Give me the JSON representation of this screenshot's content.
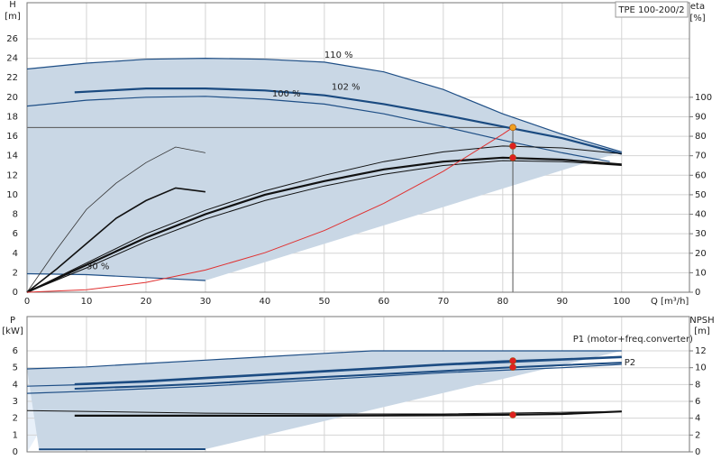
{
  "chart_data": [
    {
      "type": "line",
      "title": "TPE 100-200/2",
      "xlabel": "Q [m³/h]",
      "ylabel": "H",
      "yunit": "[m]",
      "y2label": "eta",
      "y2unit": "[%]",
      "xlim": [
        0,
        111.4
      ],
      "xticks": [
        0,
        10,
        20,
        30,
        40,
        50,
        60,
        70,
        80,
        90,
        100
      ],
      "ylim": [
        0,
        29.7
      ],
      "yticks": [
        0,
        2,
        4,
        6,
        8,
        10,
        12,
        14,
        16,
        18,
        20,
        22,
        24,
        26
      ],
      "y2lim": [
        0,
        148.5
      ],
      "y2ticks": [
        0,
        10,
        20,
        30,
        40,
        50,
        60,
        70,
        80,
        90,
        100
      ],
      "grid": true,
      "shaded_color": "#c9d7e5",
      "series": [
        {
          "name": "110 %",
          "color": "#1f4f86",
          "width": 1.2,
          "x": [
            0,
            10,
            20,
            30,
            40,
            50,
            60,
            70,
            80,
            90,
            100
          ],
          "values": [
            22.9,
            23.5,
            23.9,
            24.0,
            23.9,
            23.6,
            22.6,
            20.8,
            18.3,
            16.2,
            14.4
          ]
        },
        {
          "name": "102 %",
          "color": "#1a4a80",
          "width": 2.2,
          "x": [
            8,
            20,
            30,
            40,
            50,
            60,
            70,
            80,
            90,
            100
          ],
          "values": [
            20.5,
            20.9,
            20.9,
            20.7,
            20.2,
            19.3,
            18.2,
            17.0,
            15.8,
            14.2
          ]
        },
        {
          "name": "100 %",
          "color": "#1f4f86",
          "width": 1.2,
          "x": [
            0,
            10,
            20,
            30,
            40,
            50,
            60,
            70,
            80,
            90,
            98
          ],
          "values": [
            19.1,
            19.7,
            20.0,
            20.1,
            19.8,
            19.3,
            18.3,
            17.0,
            15.6,
            14.3,
            13.4
          ]
        },
        {
          "name": "30 %",
          "color": "#1f4f86",
          "width": 1.2,
          "x": [
            0,
            10,
            20,
            30
          ],
          "values": [
            1.9,
            1.8,
            1.5,
            1.2
          ]
        },
        {
          "color": "#111111",
          "width": 1,
          "axis": "y2",
          "x": [
            0,
            10,
            20,
            30,
            40,
            50,
            60,
            70,
            80,
            90,
            100
          ],
          "values": [
            0,
            15,
            30,
            42,
            52,
            60,
            67,
            72,
            75,
            74,
            71
          ]
        },
        {
          "color": "#111111",
          "width": 2.2,
          "axis": "y2",
          "x": [
            0,
            10,
            20,
            30,
            40,
            50,
            60,
            70,
            80,
            90,
            100
          ],
          "values": [
            0,
            14,
            28,
            40,
            50,
            57,
            63,
            67,
            69,
            68,
            65.5
          ]
        },
        {
          "color": "#111111",
          "width": 1,
          "axis": "y2",
          "x": [
            0,
            10,
            20,
            30,
            40,
            50,
            60,
            70,
            80,
            90,
            100
          ],
          "values": [
            0,
            12.5,
            26,
            37.5,
            47,
            54.5,
            60.5,
            65,
            67.5,
            67,
            65
          ]
        },
        {
          "color": "#333333",
          "width": 0.8,
          "axis": "y2",
          "x": [
            0,
            5,
            10,
            15,
            20,
            25,
            30
          ],
          "values": [
            0,
            22,
            42.5,
            56,
            66.5,
            74.5,
            71.5
          ]
        },
        {
          "color": "#111111",
          "width": 1.6,
          "axis": "y2",
          "x": [
            0,
            5,
            10,
            15,
            20,
            25,
            30
          ],
          "values": [
            0,
            12,
            25,
            38,
            47,
            53.5,
            51.5
          ]
        },
        {
          "color": "#e03030",
          "width": 1,
          "x": [
            0,
            10,
            20,
            30,
            40,
            50,
            60,
            70,
            80,
            81.7
          ],
          "values": [
            0,
            0.25,
            1.01,
            2.28,
            4.05,
            6.33,
            9.12,
            12.41,
            16.21,
            16.9
          ]
        },
        {
          "type": "point",
          "color": "#f0a020",
          "droplines": true,
          "x": [
            81.7
          ],
          "values": [
            16.9
          ]
        },
        {
          "type": "point",
          "color": "#e02020",
          "axis": "y2",
          "x": [
            81.7,
            81.7
          ],
          "values": [
            75,
            69
          ]
        }
      ]
    },
    {
      "type": "line",
      "ylabel": "P",
      "yunit": "[kW]",
      "y2label": "NPSH",
      "y2unit": "[m]",
      "xlim": [
        0,
        111.4
      ],
      "xticks": [
        0,
        10,
        20,
        30,
        40,
        50,
        60,
        70,
        80,
        90,
        100
      ],
      "ylim": [
        0,
        8
      ],
      "yticks": [
        0,
        1,
        2,
        3,
        4,
        5,
        6
      ],
      "y2lim": [
        0,
        16
      ],
      "y2ticks": [
        0,
        2,
        4,
        6,
        8,
        10,
        12
      ],
      "grid": true,
      "shaded_color": "#c9d7e5",
      "series": [
        {
          "name": "P1 (motor+freq.converter)",
          "color": "#1f4f86",
          "width": 1.2,
          "x": [
            0,
            10,
            20,
            30,
            40,
            50,
            58,
            70,
            80,
            90,
            100
          ],
          "values": [
            4.93,
            5.05,
            5.25,
            5.45,
            5.65,
            5.85,
            6.0,
            6.0,
            6.0,
            6.0,
            6.0
          ]
        },
        {
          "color": "#1a4a80",
          "width": 2.2,
          "x": [
            8,
            20,
            30,
            40,
            50,
            60,
            70,
            80,
            90,
            100
          ],
          "values": [
            4.02,
            4.2,
            4.4,
            4.6,
            4.8,
            5.0,
            5.2,
            5.38,
            5.5,
            5.65
          ]
        },
        {
          "color": "#1f4f86",
          "width": 1.2,
          "x": [
            0,
            10,
            20,
            30,
            40,
            50,
            60,
            70,
            80,
            90,
            100
          ],
          "values": [
            3.9,
            4.0,
            4.15,
            4.35,
            4.55,
            4.75,
            4.95,
            5.15,
            5.3,
            5.45,
            5.6
          ]
        },
        {
          "name": "P2",
          "color": "#1a4a80",
          "width": 2,
          "x": [
            8,
            20,
            30,
            40,
            50,
            60,
            70,
            80,
            90,
            100
          ],
          "values": [
            3.75,
            3.9,
            4.05,
            4.25,
            4.45,
            4.62,
            4.8,
            5.0,
            5.15,
            5.3
          ]
        },
        {
          "color": "#1f4f86",
          "width": 1.2,
          "x": [
            0,
            10,
            20,
            30,
            40,
            50,
            60,
            70,
            80,
            90,
            100
          ],
          "values": [
            3.48,
            3.6,
            3.75,
            3.9,
            4.1,
            4.3,
            4.5,
            4.7,
            4.85,
            5.0,
            5.2
          ]
        },
        {
          "color": "#1a4a80",
          "width": 2,
          "x": [
            2,
            30
          ],
          "values": [
            0.15,
            0.16
          ]
        },
        {
          "color": "#111111",
          "width": 1,
          "axis": "y2",
          "x": [
            0,
            30,
            50,
            70,
            100
          ],
          "values": [
            4.9,
            4.6,
            4.5,
            4.5,
            4.8
          ]
        },
        {
          "color": "#111111",
          "width": 2.2,
          "axis": "y2",
          "x": [
            8,
            20,
            30,
            40,
            50,
            60,
            70,
            80,
            90,
            100
          ],
          "values": [
            4.3,
            4.3,
            4.3,
            4.3,
            4.3,
            4.32,
            4.35,
            4.4,
            4.5,
            4.8
          ]
        },
        {
          "type": "point",
          "color": "#e02020",
          "x": [
            81.7,
            81.7
          ],
          "values": [
            5.41,
            5.03
          ]
        },
        {
          "type": "point",
          "color": "#e02020",
          "axis": "y2",
          "x": [
            81.7
          ],
          "values": [
            4.4
          ]
        }
      ]
    }
  ]
}
